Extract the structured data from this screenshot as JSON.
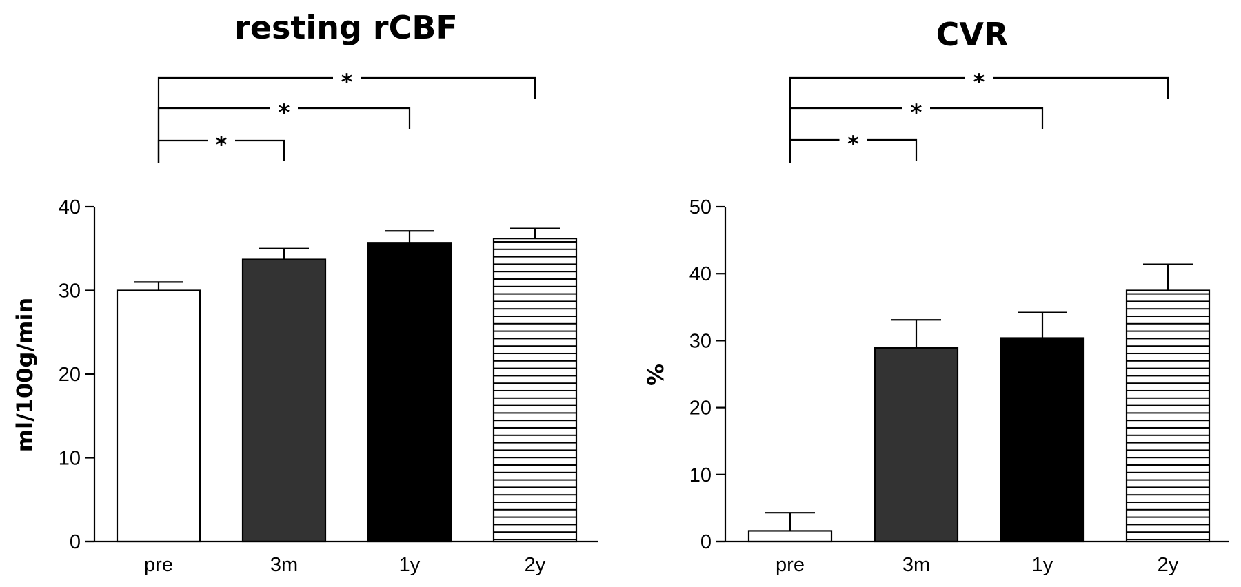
{
  "chart_data": [
    {
      "type": "bar",
      "title": "resting rCBF",
      "ylabel": "ml/100g/min",
      "xlabel": "",
      "ylim": [
        0,
        40
      ],
      "yticks": [
        0,
        10,
        20,
        30,
        40
      ],
      "categories": [
        "pre",
        "3m",
        "1y",
        "2y"
      ],
      "values": [
        30.0,
        33.7,
        35.7,
        36.2
      ],
      "errors": [
        1.0,
        1.3,
        1.4,
        1.2
      ],
      "bar_styles": [
        "white",
        "darkgray",
        "black",
        "hstripes"
      ],
      "significance": [
        {
          "from": "pre",
          "to": "2y",
          "label": "*"
        },
        {
          "from": "pre",
          "to": "1y",
          "label": "*"
        },
        {
          "from": "pre",
          "to": "3m",
          "label": "*"
        }
      ],
      "grid": false,
      "legend": "none"
    },
    {
      "type": "bar",
      "title": "CVR",
      "ylabel": "%",
      "xlabel": "",
      "ylim": [
        0,
        50
      ],
      "yticks": [
        0,
        10,
        20,
        30,
        40,
        50
      ],
      "categories": [
        "pre",
        "3m",
        "1y",
        "2y"
      ],
      "values": [
        1.6,
        28.9,
        30.4,
        37.5
      ],
      "errors": [
        2.7,
        4.2,
        3.8,
        3.9
      ],
      "bar_styles": [
        "white",
        "darkgray",
        "black",
        "hstripes"
      ],
      "significance": [
        {
          "from": "pre",
          "to": "2y",
          "label": "*"
        },
        {
          "from": "pre",
          "to": "1y",
          "label": "*"
        },
        {
          "from": "pre",
          "to": "3m",
          "label": "*"
        }
      ],
      "grid": false,
      "legend": "none"
    }
  ],
  "colors": {
    "white_bar": "#ffffff",
    "darkgray_bar": "#333333",
    "black_bar": "#000000",
    "stripe": "#000000"
  }
}
